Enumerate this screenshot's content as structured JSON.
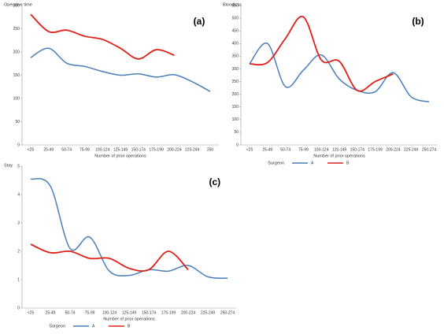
{
  "chart_data": [
    {
      "type": "line",
      "panel_label": "(a)",
      "y_label": "Operative time",
      "x_label": "Number of prior operations",
      "categories": [
        "<25",
        "25-49",
        "50-74",
        "75-99",
        "100-124",
        "125-149",
        "150-174",
        "175-199",
        "200-224",
        "225-249",
        "250"
      ],
      "ylim": [
        0,
        300
      ],
      "yticks": [
        0,
        50,
        100,
        150,
        200,
        250,
        300
      ],
      "series": [
        {
          "name": "A",
          "color": "#4a7ebb",
          "values": [
            188,
            208,
            176,
            169,
            158,
            150,
            153,
            146,
            151,
            136,
            115
          ]
        },
        {
          "name": "B",
          "color": "#e0201b",
          "values": [
            281,
            244,
            247,
            234,
            227,
            208,
            185,
            205,
            193,
            null,
            null
          ]
        }
      ]
    },
    {
      "type": "line",
      "panel_label": "(b)",
      "y_label": "Bloodloss",
      "x_label": "Number of prior operations",
      "legend_title": "Surgeon",
      "categories": [
        "<25",
        "25-49",
        "50-74",
        "75-99",
        "100-124",
        "125-149",
        "150-174",
        "175-199",
        "200-224",
        "225-249",
        "250-274"
      ],
      "ylim": [
        0,
        550
      ],
      "yticks": [
        0,
        50,
        100,
        150,
        200,
        250,
        300,
        350,
        400,
        450,
        500,
        550
      ],
      "series": [
        {
          "name": "A",
          "color": "#4a7ebb",
          "values": [
            320,
            400,
            230,
            295,
            355,
            260,
            215,
            210,
            285,
            190,
            170
          ]
        },
        {
          "name": "B",
          "color": "#e0201b",
          "values": [
            320,
            325,
            420,
            505,
            335,
            330,
            215,
            250,
            280,
            null,
            null
          ]
        }
      ]
    },
    {
      "type": "line",
      "panel_label": "(c)",
      "y_label": "Stay",
      "x_label": "Number of prior operations",
      "legend_title": "Surgeon",
      "categories": [
        "<25",
        "25-49",
        "50-74",
        "75-99",
        "100-124",
        "125-149",
        "150-174",
        "175-199",
        "200-224",
        "225-249",
        "250-274"
      ],
      "ylim": [
        0,
        5
      ],
      "yticks": [
        0,
        1,
        2,
        3,
        4,
        5
      ],
      "series": [
        {
          "name": "A",
          "color": "#4a7ebb",
          "values": [
            4.55,
            4.3,
            2.1,
            2.5,
            1.3,
            1.15,
            1.35,
            1.3,
            1.5,
            1.1,
            1.05
          ]
        },
        {
          "name": "B",
          "color": "#e0201b",
          "values": [
            2.25,
            1.95,
            2.0,
            1.75,
            1.75,
            1.4,
            1.35,
            2.0,
            1.35,
            null,
            null
          ]
        }
      ]
    }
  ]
}
